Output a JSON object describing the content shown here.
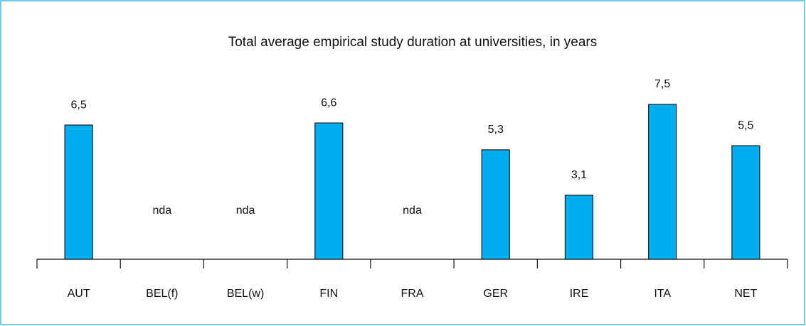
{
  "chart_data": {
    "type": "bar",
    "title": "Total average empirical study duration at universities, in years",
    "categories": [
      "AUT",
      "BEL(f)",
      "BEL(w)",
      "FIN",
      "FRA",
      "GER",
      "IRE",
      "ITA",
      "NET"
    ],
    "values": [
      6.5,
      null,
      null,
      6.6,
      null,
      5.3,
      3.1,
      7.5,
      5.5
    ],
    "value_labels": [
      "6,5",
      "nda",
      "nda",
      "6,6",
      "nda",
      "5,3",
      "3,1",
      "7,5",
      "5,5"
    ],
    "color": "#00aeef"
  }
}
